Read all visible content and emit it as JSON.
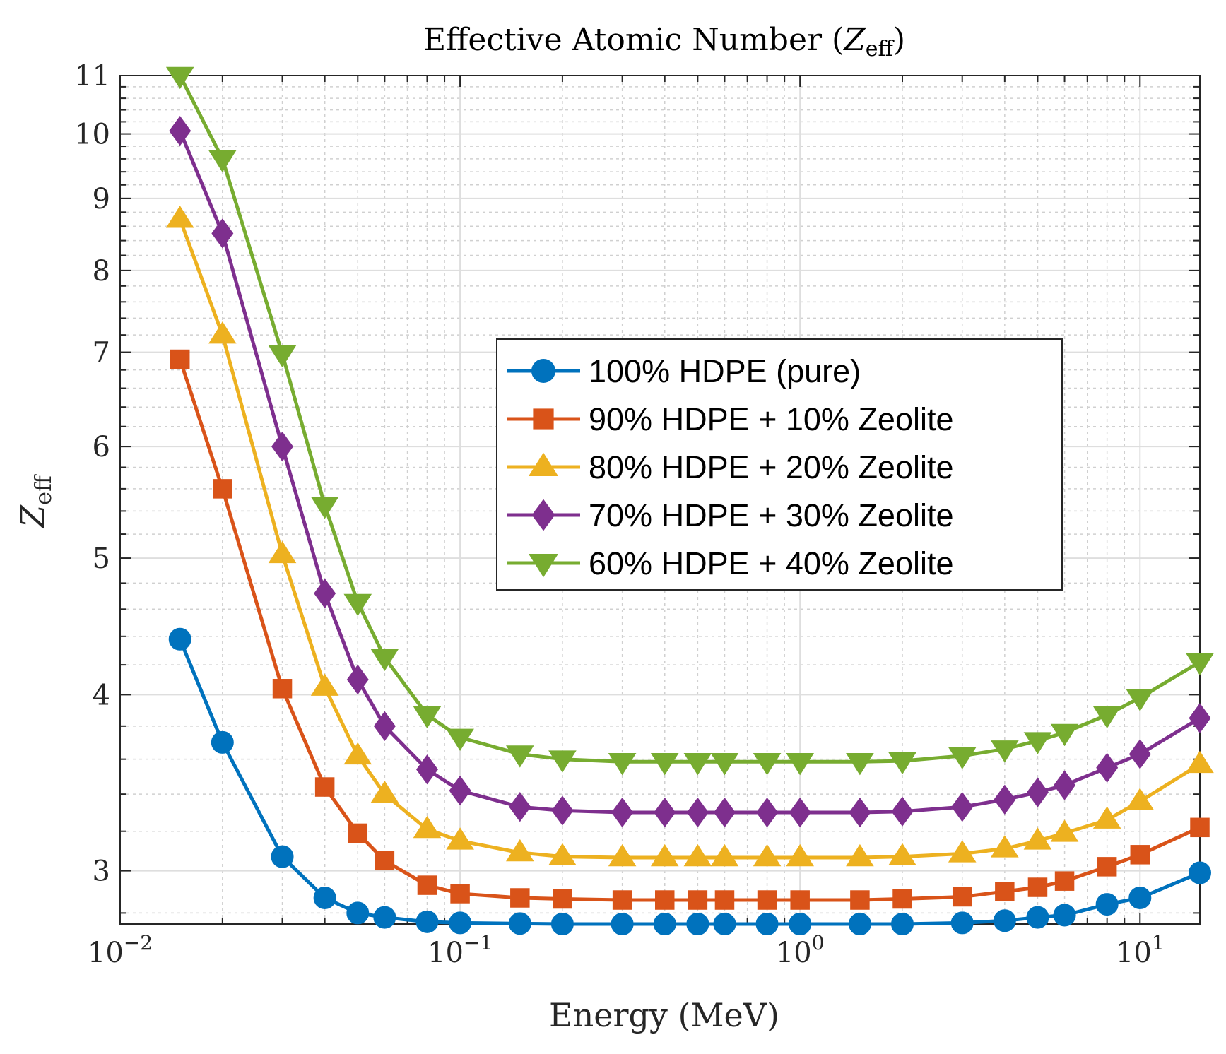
{
  "chart_data": {
    "type": "line",
    "title": "Effective Atomic Number (Z_eff)",
    "title_parts": {
      "pre": "Effective Atomic Number (",
      "symbol": "Z",
      "sub": "eff",
      "post": ")"
    },
    "xlabel": "Energy (MeV)",
    "ylabel": "Z_eff",
    "ylabel_parts": {
      "symbol": "Z",
      "sub": "eff"
    },
    "xscale": "log",
    "yscale": "log",
    "xlim": [
      0.01,
      15
    ],
    "ylim": [
      2.75,
      11
    ],
    "x_tick_labels": [
      {
        "base": "10",
        "exp": "−2",
        "value": 0.01
      },
      {
        "base": "10",
        "exp": "−1",
        "value": 0.1
      },
      {
        "base": "10",
        "exp": "0",
        "value": 1
      },
      {
        "base": "10",
        "exp": "1",
        "value": 10
      }
    ],
    "y_ticks": [
      3,
      4,
      5,
      6,
      7,
      8,
      9,
      10,
      11
    ],
    "grid": true,
    "legend_position": "center-right",
    "x": [
      0.015,
      0.02,
      0.03,
      0.04,
      0.05,
      0.06,
      0.08,
      0.1,
      0.15,
      0.2,
      0.3,
      0.4,
      0.5,
      0.6,
      0.8,
      1,
      1.5,
      2,
      3,
      4,
      5,
      6,
      8,
      10,
      15
    ],
    "series": [
      {
        "name": "100% HDPE (pure)",
        "color": "#0072BD",
        "marker": "circle",
        "values": [
          4.38,
          3.7,
          3.07,
          2.87,
          2.8,
          2.78,
          2.76,
          2.755,
          2.752,
          2.75,
          2.75,
          2.75,
          2.75,
          2.75,
          2.75,
          2.75,
          2.75,
          2.75,
          2.755,
          2.765,
          2.78,
          2.79,
          2.84,
          2.87,
          2.99
        ]
      },
      {
        "name": "90% HDPE + 10% Zeolite",
        "color": "#D95319",
        "marker": "square",
        "values": [
          6.92,
          5.6,
          4.04,
          3.44,
          3.19,
          3.05,
          2.93,
          2.89,
          2.87,
          2.865,
          2.86,
          2.86,
          2.86,
          2.86,
          2.86,
          2.86,
          2.86,
          2.865,
          2.875,
          2.9,
          2.92,
          2.95,
          3.02,
          3.08,
          3.22
        ]
      },
      {
        "name": "80% HDPE + 20% Zeolite",
        "color": "#EDB120",
        "marker": "triangle-up",
        "values": [
          8.7,
          7.2,
          5.03,
          4.05,
          3.62,
          3.4,
          3.21,
          3.15,
          3.09,
          3.07,
          3.065,
          3.065,
          3.065,
          3.065,
          3.065,
          3.065,
          3.065,
          3.07,
          3.085,
          3.11,
          3.15,
          3.19,
          3.26,
          3.36,
          3.57
        ]
      },
      {
        "name": "70% HDPE + 30% Zeolite",
        "color": "#7E2F8E",
        "marker": "diamond",
        "values": [
          10.05,
          8.5,
          6.0,
          4.72,
          4.1,
          3.8,
          3.54,
          3.42,
          3.33,
          3.31,
          3.3,
          3.3,
          3.3,
          3.3,
          3.3,
          3.3,
          3.3,
          3.305,
          3.33,
          3.37,
          3.41,
          3.45,
          3.55,
          3.63,
          3.85
        ]
      },
      {
        "name": "60% HDPE + 40% Zeolite",
        "color": "#77AC30",
        "marker": "triangle-down",
        "values": [
          11.0,
          9.6,
          6.98,
          5.45,
          4.65,
          4.25,
          3.87,
          3.73,
          3.63,
          3.6,
          3.585,
          3.585,
          3.585,
          3.585,
          3.585,
          3.585,
          3.585,
          3.59,
          3.62,
          3.66,
          3.71,
          3.76,
          3.87,
          3.98,
          4.22
        ]
      }
    ]
  }
}
